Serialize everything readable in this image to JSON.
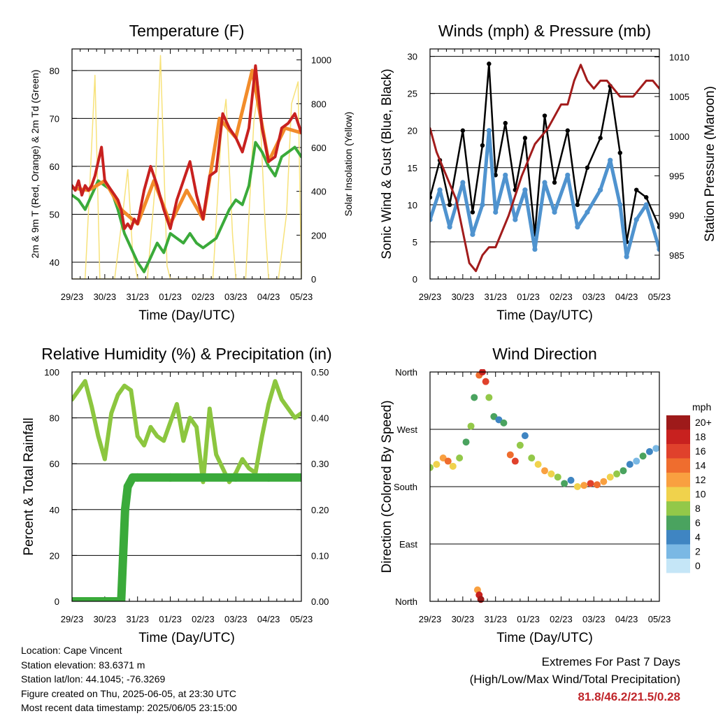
{
  "info": {
    "location": "Location: Cape Vincent",
    "elevation": "Station elevation: 83.6371 m",
    "latlon": "Station lat/lon: 44.1045; -76.3269",
    "created": "Figure created on Thu, 2025-06-05, at 23:30 UTC",
    "recent": "Most recent data timestamp: 2025/06/05 23:15:00"
  },
  "extremes": {
    "title": "Extremes For Past 7 Days",
    "subtitle": "(High/Low/Max Wind/Total Precipitation)",
    "values": "81.8/46.2/21.5/0.28"
  },
  "chart_data": [
    {
      "type": "line",
      "title": "Temperature (F)",
      "xlabel": "Time (Day/UTC)",
      "ylabel": "2m & 9m T (Red, Orange) & 2m Td (Green)",
      "y2label": "Solar Insolation (Yellow)",
      "x_ticks": [
        "29/23",
        "30/23",
        "31/23",
        "01/23",
        "02/23",
        "03/23",
        "04/23",
        "05/23"
      ],
      "xlim": [
        0,
        7
      ],
      "ylim": [
        36.5,
        84.5
      ],
      "y_ticks": [
        40,
        50,
        60,
        70,
        80
      ],
      "y2lim": [
        0,
        1050
      ],
      "y2_ticks": [
        0,
        200,
        400,
        600,
        800,
        1000
      ],
      "grid": true,
      "series": [
        {
          "color": "#c8211f",
          "x": [
            0,
            0.1,
            0.2,
            0.3,
            0.4,
            0.5,
            0.6,
            0.7,
            0.8,
            0.9,
            1.0,
            1.1,
            1.2,
            1.3,
            1.4,
            1.5,
            1.6,
            1.7,
            1.8,
            1.9,
            2.0,
            2.2,
            2.4,
            2.6,
            2.8,
            3.0,
            3.2,
            3.4,
            3.6,
            3.8,
            4.0,
            4.2,
            4.4,
            4.6,
            4.8,
            5.0,
            5.2,
            5.4,
            5.6,
            5.8,
            6.0,
            6.2,
            6.4,
            6.6,
            6.8,
            7.0
          ],
          "values": [
            56,
            55,
            57,
            54,
            56,
            55,
            56,
            58,
            61,
            64,
            57,
            56,
            55,
            54,
            53,
            51,
            47,
            48,
            47,
            49,
            48,
            55,
            60,
            56,
            51,
            47,
            53,
            57,
            61,
            54,
            49,
            58,
            59,
            71,
            68,
            66,
            63,
            68,
            81,
            68,
            61,
            62,
            68,
            69,
            71,
            67
          ]
        },
        {
          "color": "#f28c2a",
          "x": [
            0,
            0.5,
            1.0,
            1.5,
            2.0,
            2.5,
            3.0,
            3.5,
            4.0,
            4.5,
            5.0,
            5.5,
            6.0,
            6.5,
            7.0
          ],
          "values": [
            55.5,
            55,
            57,
            51,
            48,
            57,
            48,
            55,
            49,
            70,
            66,
            80,
            61,
            68,
            67
          ]
        },
        {
          "color": "#3aaa3a",
          "x": [
            0,
            0.2,
            0.4,
            0.6,
            0.8,
            1.0,
            1.2,
            1.4,
            1.6,
            1.8,
            2.0,
            2.2,
            2.4,
            2.6,
            2.8,
            3.0,
            3.2,
            3.4,
            3.6,
            3.8,
            4.0,
            4.2,
            4.4,
            4.6,
            4.8,
            5.0,
            5.2,
            5.4,
            5.6,
            5.8,
            6.0,
            6.2,
            6.4,
            6.6,
            6.8,
            7.0
          ],
          "values": [
            54,
            53,
            51,
            54,
            57,
            56,
            55,
            51,
            46,
            43,
            40,
            38,
            41,
            44,
            42,
            46,
            45,
            44,
            46,
            44,
            43,
            44,
            45,
            48,
            51,
            53,
            52,
            56,
            65,
            63,
            60,
            58,
            62,
            63,
            64,
            62
          ]
        },
        {
          "color": "#f7e27a",
          "x": [
            0,
            0.4,
            0.55,
            0.7,
            0.85,
            1.3,
            1.55,
            1.7,
            1.85,
            2.0,
            2.3,
            2.55,
            2.7,
            2.9,
            3.0,
            3.3,
            3.55,
            3.7,
            3.9,
            4.0,
            4.3,
            4.55,
            4.7,
            4.9,
            5.0,
            5.3,
            5.55,
            5.7,
            5.9,
            6.0,
            6.3,
            6.55,
            6.7,
            6.9,
            7.0
          ],
          "values": [
            0,
            0,
            450,
            930,
            0,
            0,
            300,
            500,
            120,
            0,
            0,
            450,
            1020,
            60,
            0,
            0,
            0,
            0,
            0,
            0,
            0,
            650,
            820,
            200,
            0,
            0,
            720,
            880,
            230,
            0,
            0,
            300,
            800,
            900,
            0
          ]
        }
      ]
    },
    {
      "type": "line",
      "title": "Winds (mph) & Pressure (mb)",
      "xlabel": "Time (Day/UTC)",
      "ylabel": "Sonic Wind & Gust (Blue, Black)",
      "y2label": "Station Pressure (Maroon)",
      "x_ticks": [
        "29/23",
        "30/23",
        "31/23",
        "01/23",
        "02/23",
        "03/23",
        "04/23",
        "05/23"
      ],
      "xlim": [
        0,
        7
      ],
      "ylim": [
        0,
        31
      ],
      "y_ticks": [
        0,
        5,
        10,
        15,
        20,
        25,
        30
      ],
      "y2lim": [
        982,
        1011
      ],
      "y2_ticks": [
        985,
        990,
        995,
        1000,
        1005,
        1010
      ],
      "grid": true,
      "series": [
        {
          "color": "#4f93cf",
          "x": [
            0,
            0.3,
            0.6,
            1.0,
            1.3,
            1.6,
            1.8,
            2.0,
            2.3,
            2.6,
            2.9,
            3.2,
            3.5,
            3.8,
            4.2,
            4.5,
            4.8,
            5.2,
            5.5,
            5.8,
            6.0,
            6.3,
            6.6,
            7.0
          ],
          "values": [
            8,
            12,
            7,
            13,
            6,
            10,
            20,
            9,
            14,
            8,
            12,
            4,
            13,
            9,
            14,
            7,
            9,
            12,
            16,
            10,
            3,
            8,
            10,
            4
          ]
        },
        {
          "color": "#000000",
          "x": [
            0,
            0.3,
            0.6,
            1.0,
            1.3,
            1.6,
            1.8,
            2.0,
            2.3,
            2.6,
            2.9,
            3.2,
            3.5,
            3.8,
            4.2,
            4.5,
            4.8,
            5.2,
            5.5,
            5.8,
            6.0,
            6.3,
            6.6,
            7.0
          ],
          "values": [
            11,
            16,
            10,
            20,
            9,
            18,
            29,
            14,
            21,
            12,
            19,
            6,
            22,
            13,
            20,
            10,
            15,
            19,
            26,
            17,
            5,
            12,
            11,
            7
          ]
        },
        {
          "color": "#a21c1c",
          "axis": "y2",
          "x": [
            0,
            0.2,
            0.4,
            0.6,
            0.8,
            1.0,
            1.2,
            1.4,
            1.6,
            1.8,
            2.0,
            2.4,
            2.8,
            3.2,
            3.6,
            4.0,
            4.2,
            4.4,
            4.6,
            4.8,
            5.0,
            5.2,
            5.4,
            5.6,
            5.8,
            6.0,
            6.2,
            6.4,
            6.6,
            6.8,
            7.0
          ],
          "values": [
            1001,
            998,
            996,
            994,
            992,
            988,
            984,
            983,
            985,
            986,
            986,
            990,
            995,
            999,
            1001,
            1004,
            1004,
            1007,
            1009,
            1007,
            1006,
            1007,
            1007,
            1006,
            1005,
            1005,
            1005,
            1006,
            1007,
            1007,
            1006
          ]
        }
      ]
    },
    {
      "type": "line",
      "title": "Relative Humidity (%) & Precipitation (in)",
      "xlabel": "Time (Day/UTC)",
      "ylabel": "Percent & Total Rainfall",
      "x_ticks": [
        "29/23",
        "30/23",
        "31/23",
        "01/23",
        "02/23",
        "03/23",
        "04/23",
        "05/23"
      ],
      "xlim": [
        0,
        7
      ],
      "ylim": [
        0,
        100
      ],
      "y_ticks": [
        0,
        20,
        40,
        60,
        80,
        100
      ],
      "y2lim": [
        0,
        0.5
      ],
      "y2_ticks": [
        "0.00",
        "0.10",
        "0.20",
        "0.30",
        "0.40",
        "0.50"
      ],
      "grid": true,
      "series": [
        {
          "color": "#8cc63f",
          "x": [
            0,
            0.2,
            0.4,
            0.6,
            0.8,
            1.0,
            1.2,
            1.4,
            1.6,
            1.8,
            2.0,
            2.2,
            2.4,
            2.6,
            2.8,
            3.0,
            3.2,
            3.4,
            3.6,
            3.8,
            4.0,
            4.2,
            4.4,
            4.6,
            4.8,
            5.0,
            5.2,
            5.4,
            5.6,
            5.8,
            6.0,
            6.2,
            6.4,
            6.6,
            6.8,
            7.0
          ],
          "values": [
            88,
            92,
            96,
            85,
            72,
            62,
            82,
            90,
            94,
            92,
            72,
            68,
            76,
            72,
            70,
            78,
            86,
            70,
            80,
            76,
            52,
            84,
            64,
            58,
            52,
            56,
            62,
            58,
            56,
            72,
            86,
            96,
            88,
            84,
            80,
            82
          ]
        },
        {
          "color": "#3aaa3a",
          "axis": "y2",
          "x": [
            0,
            1.2,
            1.5,
            1.56,
            1.62,
            1.7,
            1.85,
            2.0,
            3.0,
            4.0,
            5.0,
            6.0,
            7.0
          ],
          "values": [
            0,
            0,
            0,
            0.1,
            0.2,
            0.25,
            0.27,
            0.27,
            0.27,
            0.27,
            0.27,
            0.27,
            0.27
          ]
        }
      ]
    },
    {
      "type": "scatter",
      "title": "Wind Direction",
      "xlabel": "Time (Day/UTC)",
      "ylabel": "Direction (Colored By Speed)",
      "x_ticks": [
        "29/23",
        "30/23",
        "31/23",
        "01/23",
        "02/23",
        "03/23",
        "04/23",
        "05/23"
      ],
      "xlim": [
        0,
        7
      ],
      "y_ticks": [
        "North",
        "East",
        "South",
        "West",
        "North"
      ],
      "y_values": [
        0,
        90,
        180,
        270,
        360
      ],
      "ylim": [
        0,
        360
      ],
      "legend": {
        "title": "mph",
        "labels": [
          "20+",
          "18",
          "16",
          "14",
          "12",
          "10",
          "8",
          "6",
          "4",
          "2",
          "0"
        ],
        "colors": [
          "#9e1a1a",
          "#c8211f",
          "#e0412c",
          "#ef6d2e",
          "#f9a040",
          "#f0d24c",
          "#93c849",
          "#4aa35f",
          "#3f85c2",
          "#7ab8e4",
          "#c5e6f7"
        ],
        "placement": "right"
      },
      "points": [
        [
          0.0,
          210,
          8
        ],
        [
          0.2,
          215,
          10
        ],
        [
          0.4,
          225,
          12
        ],
        [
          0.55,
          220,
          14
        ],
        [
          0.7,
          212,
          10
        ],
        [
          0.9,
          225,
          8
        ],
        [
          1.1,
          250,
          6
        ],
        [
          1.25,
          275,
          8
        ],
        [
          1.35,
          320,
          6
        ],
        [
          1.5,
          355,
          14
        ],
        [
          1.6,
          360,
          18
        ],
        [
          1.7,
          345,
          16
        ],
        [
          1.8,
          320,
          8
        ],
        [
          1.95,
          290,
          6
        ],
        [
          2.1,
          285,
          4
        ],
        [
          2.25,
          280,
          6
        ],
        [
          2.45,
          230,
          14
        ],
        [
          2.6,
          220,
          16
        ],
        [
          2.75,
          245,
          8
        ],
        [
          2.9,
          260,
          4
        ],
        [
          3.1,
          225,
          8
        ],
        [
          3.3,
          215,
          10
        ],
        [
          3.5,
          205,
          12
        ],
        [
          3.7,
          200,
          10
        ],
        [
          3.9,
          195,
          8
        ],
        [
          4.1,
          185,
          6
        ],
        [
          4.3,
          190,
          4
        ],
        [
          4.5,
          180,
          10
        ],
        [
          4.7,
          182,
          12
        ],
        [
          4.9,
          185,
          16
        ],
        [
          5.1,
          183,
          14
        ],
        [
          5.3,
          188,
          12
        ],
        [
          5.5,
          195,
          10
        ],
        [
          5.7,
          200,
          8
        ],
        [
          5.9,
          205,
          6
        ],
        [
          6.1,
          215,
          4
        ],
        [
          6.3,
          220,
          2
        ],
        [
          6.5,
          228,
          6
        ],
        [
          6.7,
          235,
          4
        ],
        [
          6.9,
          240,
          2
        ],
        [
          1.45,
          18,
          12
        ],
        [
          1.5,
          10,
          18
        ],
        [
          1.55,
          3,
          20
        ]
      ]
    }
  ]
}
